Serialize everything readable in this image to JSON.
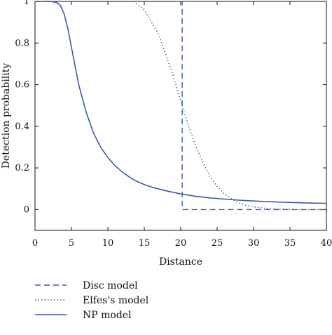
{
  "chart_data": {
    "type": "line",
    "xlabel": "Distance",
    "ylabel": "Detection probability",
    "xlim": [
      0,
      40
    ],
    "ylim": [
      -0.1,
      1.0
    ],
    "xticks": [
      "0",
      "5",
      "10",
      "15",
      "20",
      "25",
      "30",
      "35",
      "40"
    ],
    "yticks": [
      "0",
      "0.2",
      "0.4",
      "0.6",
      "0.8",
      "1"
    ],
    "grid": false,
    "legend_position": "bottom-left, below plot",
    "series_color": "#3a5aa8",
    "series": [
      {
        "name": "Disc model",
        "style": "dashed",
        "x": [
          0,
          20.2,
          20.2,
          40
        ],
        "y": [
          1,
          1,
          0,
          0
        ]
      },
      {
        "name": "Elfes's model",
        "style": "dotted",
        "x": [
          13.5,
          15,
          17,
          19,
          20,
          21,
          22,
          23,
          24,
          25,
          26,
          27,
          28,
          29,
          30,
          32,
          34,
          36,
          40
        ],
        "y": [
          1.0,
          0.96,
          0.84,
          0.64,
          0.52,
          0.41,
          0.31,
          0.23,
          0.16,
          0.11,
          0.075,
          0.05,
          0.032,
          0.02,
          0.012,
          0.005,
          0.002,
          0.0,
          0.0
        ]
      },
      {
        "name": "NP model",
        "style": "solid",
        "x": [
          0,
          2,
          3,
          3.5,
          4,
          4.5,
          5,
          5.5,
          6,
          7,
          8,
          9,
          10,
          11,
          12,
          13,
          14,
          15,
          16,
          18,
          20,
          22,
          24,
          26,
          28,
          30,
          32,
          34,
          36,
          38,
          40
        ],
        "y": [
          1.0,
          1.0,
          0.995,
          0.98,
          0.94,
          0.87,
          0.78,
          0.69,
          0.6,
          0.47,
          0.37,
          0.3,
          0.25,
          0.21,
          0.18,
          0.155,
          0.135,
          0.12,
          0.108,
          0.09,
          0.075,
          0.064,
          0.056,
          0.05,
          0.045,
          0.041,
          0.038,
          0.035,
          0.033,
          0.031,
          0.03
        ]
      }
    ]
  }
}
